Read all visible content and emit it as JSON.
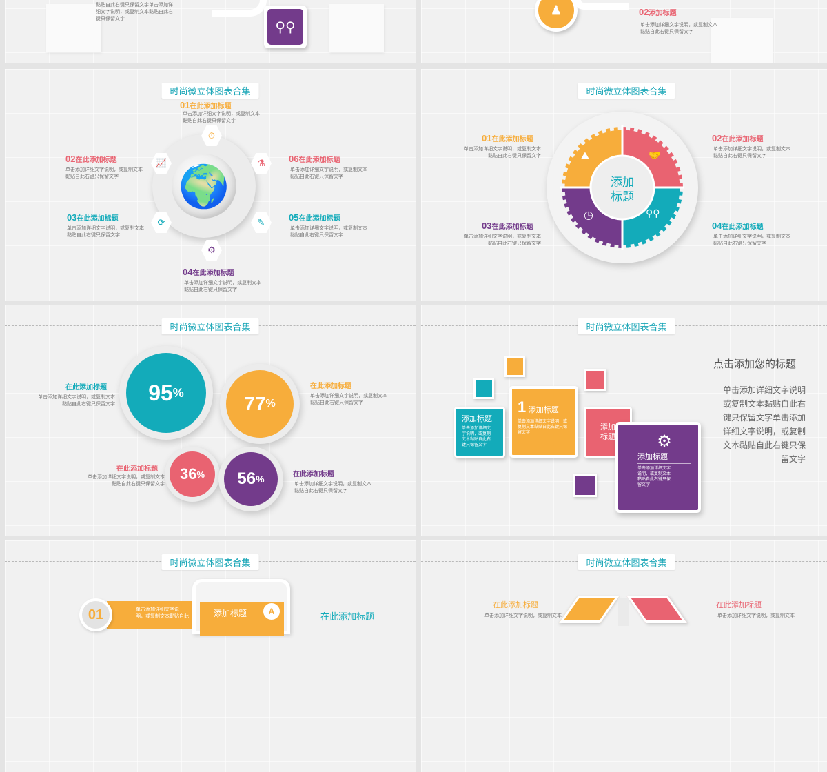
{
  "colors": {
    "orange": "#f7ad3b",
    "teal": "#13abba",
    "pink": "#e96371",
    "purple": "#733b8b"
  },
  "deck_title": "时尚微立体图表合集",
  "common": {
    "heading_short": "在此添加标题",
    "desc_a": "单击添加详细文字说明，或复制文本",
    "desc_b": "黏贴自此右键只保留文字"
  },
  "s1": {
    "text1": "黏贴自此右键只保留文字单击添加详",
    "text2": "细文字说明，或复制文本黏贴自此右",
    "text3": "键只保留文字",
    "icon": "people-icon"
  },
  "s2": {
    "num": "02",
    "heading": "添加标题",
    "desc1": "单击添加详细文字说明，或复制文本",
    "desc2": "黏贴自此右键只保留文字"
  },
  "s3": {
    "items": [
      {
        "num": "01",
        "label": "在此添加标题"
      },
      {
        "num": "02",
        "label": "在此添加标题"
      },
      {
        "num": "03",
        "label": "在此添加标题"
      },
      {
        "num": "04",
        "label": "在此添加标题"
      },
      {
        "num": "05",
        "label": "在此添加标题"
      },
      {
        "num": "06",
        "label": "在此添加标题"
      }
    ]
  },
  "s4": {
    "center1": "添加",
    "center2": "标题",
    "items": [
      {
        "num": "01",
        "label": "在此添加标题"
      },
      {
        "num": "02",
        "label": "在此添加标题"
      },
      {
        "num": "03",
        "label": "在此添加标题"
      },
      {
        "num": "04",
        "label": "在此添加标题"
      }
    ]
  },
  "s5": {
    "items": [
      {
        "value": "95",
        "unit": "%",
        "label": "在此添加标题"
      },
      {
        "value": "77",
        "unit": "%",
        "label": "在此添加标题"
      },
      {
        "value": "36",
        "unit": "%",
        "label": "在此添加标题"
      },
      {
        "value": "56",
        "unit": "%",
        "label": "在此添加标题"
      }
    ]
  },
  "s6": {
    "heading": "点击添加您的标题",
    "body": [
      "单击添加详细文字说明",
      "或复制文本黏贴自此右",
      "键只保留文字单击添加",
      "详细文字说明，或复制",
      "文本黏贴自此右键只保",
      "留文字"
    ],
    "box1_title": "添加标题",
    "box1_desc": [
      "单击添加详细文",
      "字说明，或复制",
      "文本黏贴自此右",
      "键只保留文字"
    ],
    "box2_num": "1",
    "box2_title": "添加标题",
    "box2_desc": [
      "单击添加详细文字说明，或",
      "复制文本黏贴自此右键只保",
      "留文字"
    ],
    "box3_title1": "添加",
    "box3_title2": "标题",
    "box4_title": "添加标题",
    "box4_desc": [
      "单击添加详细文字",
      "说明，或复制文本",
      "黏贴自此右键只保",
      "留文字"
    ]
  },
  "s7": {
    "num": "01",
    "desc1": "单击添加详细文字说",
    "desc2": "明，或复制文本黏贴自此",
    "phone_title": "添加标题",
    "badge": "A",
    "right_heading": "在此添加标题"
  },
  "s8": {
    "left": "在此添加标题",
    "left_desc": "单击添加详细文字说明，或复制文本",
    "right": "在此添加标题",
    "right_desc": "单击添加详细文字说明，或复制文本"
  }
}
